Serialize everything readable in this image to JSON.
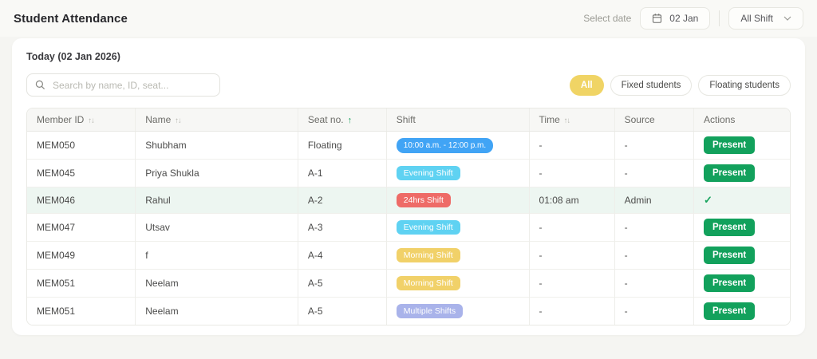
{
  "header": {
    "title": "Student Attendance",
    "select_date_label": "Select date",
    "date_button_value": "02 Jan",
    "shift_select_value": "All Shift"
  },
  "card": {
    "today_heading": "Today (02 Jan 2026)",
    "search": {
      "placeholder": "Search by name, ID, seat..."
    },
    "filters": [
      {
        "label": "All",
        "active": true
      },
      {
        "label": "Fixed students",
        "active": false
      },
      {
        "label": "Floating students",
        "active": false
      }
    ]
  },
  "table": {
    "columns": [
      {
        "label": "Member ID",
        "sort": "both"
      },
      {
        "label": "Name",
        "sort": "both"
      },
      {
        "label": "Seat no.",
        "sort": "asc"
      },
      {
        "label": "Shift",
        "sort": "none"
      },
      {
        "label": "Time",
        "sort": "both"
      },
      {
        "label": "Source",
        "sort": "none"
      },
      {
        "label": "Actions",
        "sort": "none"
      }
    ],
    "present_button_label": "Present",
    "check_icon": "✓",
    "rows": [
      {
        "member_id": "MEM050",
        "name": "Shubham",
        "seat": "Floating",
        "shift_label": "10:00 a.m. - 12:00 p.m.",
        "shift_type": "time",
        "time": "-",
        "source": "-",
        "action": "present",
        "highlight": false
      },
      {
        "member_id": "MEM045",
        "name": "Priya Shukla",
        "seat": "A-1",
        "shift_label": "Evening Shift",
        "shift_type": "evening",
        "time": "-",
        "source": "-",
        "action": "present",
        "highlight": false
      },
      {
        "member_id": "MEM046",
        "name": "Rahul",
        "seat": "A-2",
        "shift_label": "24hrs Shift",
        "shift_type": "full24",
        "time": "01:08 am",
        "source": "Admin",
        "action": "check",
        "highlight": true
      },
      {
        "member_id": "MEM047",
        "name": "Utsav",
        "seat": "A-3",
        "shift_label": "Evening Shift",
        "shift_type": "evening",
        "time": "-",
        "source": "-",
        "action": "present",
        "highlight": false
      },
      {
        "member_id": "MEM049",
        "name": "f",
        "seat": "A-4",
        "shift_label": "Morning Shift",
        "shift_type": "morning",
        "time": "-",
        "source": "-",
        "action": "present",
        "highlight": false
      },
      {
        "member_id": "MEM051",
        "name": "Neelam",
        "seat": "A-5",
        "shift_label": "Morning Shift",
        "shift_type": "morning",
        "time": "-",
        "source": "-",
        "action": "present",
        "highlight": false
      },
      {
        "member_id": "MEM051",
        "name": "Neelam",
        "seat": "A-5",
        "shift_label": "Multiple Shifts",
        "shift_type": "multiple",
        "time": "-",
        "source": "-",
        "action": "present",
        "highlight": false
      }
    ]
  },
  "colors": {
    "badge_time": "#41a4f5",
    "badge_evening": "#5fd2f2",
    "badge_full24": "#ee6b67",
    "badge_morning": "#f1d169",
    "badge_multiple": "#a9b3ea",
    "present_green": "#12a15c",
    "check_green": "#17a45d",
    "active_pill_yellow": "#f0d465",
    "row_highlight": "#edf6f1",
    "sort_active_green": "#14a05a"
  },
  "icons": {
    "calendar": "calendar-icon",
    "chevron_down": "chevron-down-icon",
    "search": "search-icon"
  }
}
